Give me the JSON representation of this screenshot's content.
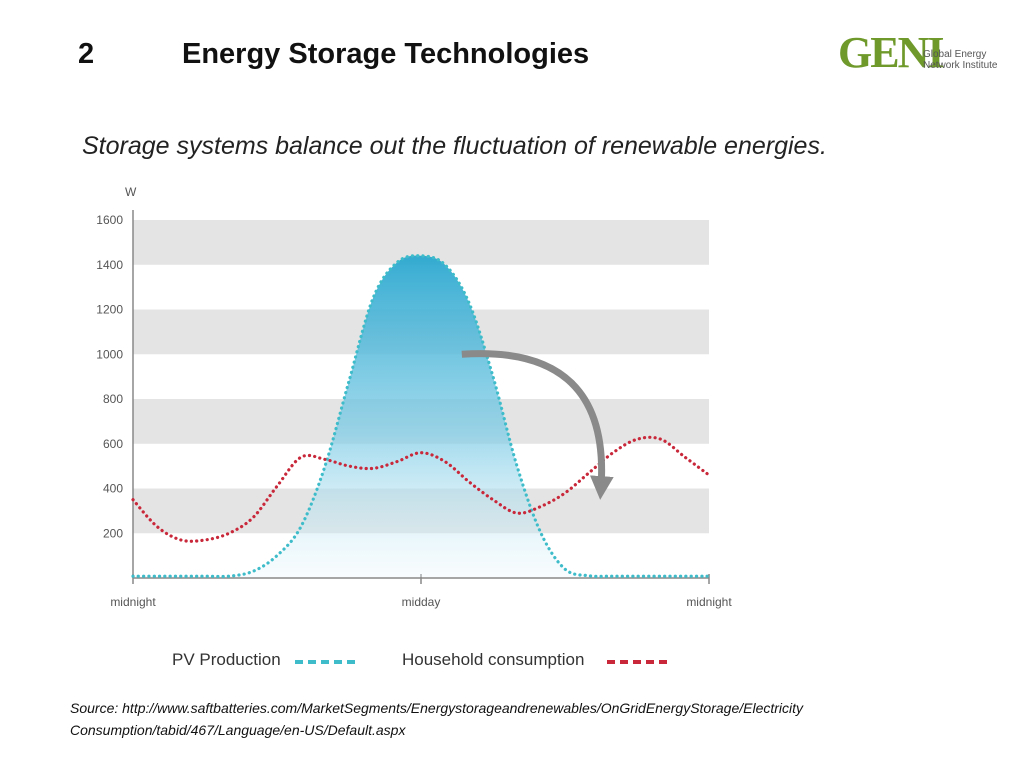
{
  "header": {
    "number": "2",
    "title": "Energy Storage Technologies"
  },
  "logo": {
    "mark": "GENI",
    "line1": "Global Energy",
    "line2": "Network Institute"
  },
  "subtitle": "Storage systems balance out the fluctuation of renewable energies.",
  "chart_data": {
    "type": "area",
    "ylabel": "W",
    "ylim": [
      0,
      1600
    ],
    "yticks": [
      200,
      400,
      600,
      800,
      1000,
      1200,
      1400,
      1600
    ],
    "xlim": [
      0,
      24
    ],
    "xticks": [
      {
        "x": 0,
        "label": "midnight"
      },
      {
        "x": 12,
        "label": "midday"
      },
      {
        "x": 24,
        "label": "midnight"
      }
    ],
    "grid": "alternating horizontal bands",
    "legend_position": "bottom",
    "annotations": [
      {
        "type": "arrow",
        "from": [
          13.7,
          1000
        ],
        "to": [
          19.5,
          250
        ],
        "color": "#8a8a8a"
      }
    ],
    "x": [
      0,
      1,
      2,
      3,
      4,
      5,
      6,
      7,
      8,
      9,
      10,
      11,
      12,
      13,
      14,
      15,
      16,
      17,
      18,
      19,
      20,
      21,
      22,
      23,
      24
    ],
    "series": [
      {
        "name": "PV Production",
        "color": "#3fbcc9",
        "fill": true,
        "values": [
          0,
          0,
          0,
          0,
          5,
          30,
          100,
          230,
          500,
          880,
          1250,
          1410,
          1440,
          1400,
          1230,
          900,
          500,
          200,
          40,
          10,
          5,
          0,
          0,
          0,
          0
        ]
      },
      {
        "name": "Household consumption",
        "color": "#c8283a",
        "fill": false,
        "values": [
          350,
          230,
          170,
          170,
          200,
          270,
          410,
          540,
          530,
          500,
          490,
          520,
          560,
          520,
          430,
          350,
          290,
          320,
          380,
          470,
          560,
          620,
          620,
          540,
          460
        ]
      }
    ]
  },
  "source": {
    "line1": "Source: http://www.saftbatteries.com/MarketSegments/Energystorageandrenewables/OnGridEnergyStorage/Electricity",
    "line2": "Consumption/tabid/467/Language/en-US/Default.aspx"
  }
}
